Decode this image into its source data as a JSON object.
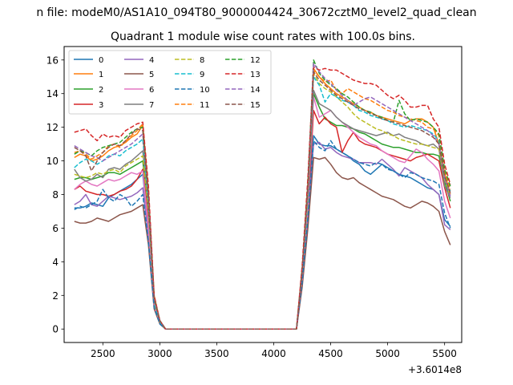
{
  "chart_data": {
    "type": "line",
    "suptitle": "n file: modeM0/AS1A10_094T80_9000004424_30672cztM0_level2_quad_clean",
    "title": "Quadrant 1 module wise count rates with 100.0s bins.",
    "xlabel": "",
    "ylabel": "",
    "offset_text": "+3.6014e8",
    "xlim": [
      2160,
      5650
    ],
    "ylim": [
      -0.8,
      16.8
    ],
    "xticks": [
      2500,
      3000,
      3500,
      4000,
      4500,
      5000,
      5500
    ],
    "xtick_labels": [
      "2500",
      "3000",
      "3500",
      "4000",
      "4500",
      "5000",
      "5500"
    ],
    "yticks": [
      0,
      2,
      4,
      6,
      8,
      10,
      12,
      14,
      16
    ],
    "ytick_labels": [
      "0",
      "2",
      "4",
      "6",
      "8",
      "10",
      "12",
      "14",
      "16"
    ],
    "grid": false,
    "legend": "upper-left, 4 columns",
    "x": [
      2250,
      2300,
      2350,
      2400,
      2450,
      2500,
      2550,
      2600,
      2650,
      2700,
      2750,
      2800,
      2850,
      2900,
      2950,
      3000,
      3050,
      3100,
      4150,
      4200,
      4250,
      4300,
      4350,
      4400,
      4450,
      4500,
      4550,
      4600,
      4650,
      4700,
      4750,
      4800,
      4850,
      4900,
      4950,
      5000,
      5050,
      5100,
      5150,
      5200,
      5250,
      5300,
      5350,
      5400,
      5450,
      5500,
      5550
    ],
    "series": [
      {
        "name": "0",
        "color": "#1f77b4",
        "dash": "solid",
        "values": [
          7.2,
          7.2,
          7.3,
          7.5,
          7.4,
          7.3,
          7.8,
          8.0,
          8.2,
          8.4,
          8.6,
          8.9,
          9.2,
          6.0,
          1.5,
          0.4,
          0,
          0,
          0,
          0,
          3.0,
          7.0,
          11.5,
          11.0,
          10.9,
          10.9,
          10.7,
          10.5,
          10.3,
          10.0,
          9.8,
          9.4,
          9.2,
          9.5,
          9.8,
          9.6,
          9.4,
          9.2,
          9.1,
          9.0,
          8.8,
          8.6,
          8.4,
          8.3,
          8.0,
          6.5,
          6.1
        ]
      },
      {
        "name": "1",
        "color": "#ff7f0e",
        "dash": "solid",
        "values": [
          10.2,
          10.4,
          10.3,
          10.0,
          10.1,
          10.3,
          10.6,
          10.8,
          10.9,
          11.1,
          11.4,
          11.6,
          12.1,
          8.0,
          2.0,
          0.5,
          0,
          0,
          0,
          0,
          3.5,
          8.5,
          15.5,
          15.0,
          14.6,
          14.3,
          14.0,
          13.8,
          13.6,
          13.4,
          13.2,
          13.0,
          12.9,
          12.7,
          12.6,
          12.5,
          12.4,
          12.3,
          12.2,
          12.4,
          12.5,
          12.5,
          12.3,
          12.0,
          11.0,
          9.3,
          8.0
        ]
      },
      {
        "name": "2",
        "color": "#2ca02c",
        "dash": "solid",
        "values": [
          8.9,
          9.0,
          9.0,
          8.9,
          9.0,
          9.1,
          9.3,
          9.3,
          9.2,
          9.4,
          9.6,
          9.8,
          10.0,
          7.0,
          1.6,
          0.4,
          0,
          0,
          0,
          0,
          3.2,
          7.8,
          14.0,
          13.2,
          12.5,
          12.3,
          12.1,
          12.1,
          12.0,
          11.9,
          11.7,
          11.6,
          11.4,
          11.2,
          11.0,
          10.9,
          10.8,
          10.8,
          10.7,
          10.6,
          10.5,
          10.5,
          10.4,
          10.4,
          10.3,
          8.8,
          7.6
        ]
      },
      {
        "name": "3",
        "color": "#d62728",
        "dash": "solid",
        "values": [
          8.3,
          8.5,
          8.2,
          8.1,
          8.0,
          8.0,
          7.9,
          8.0,
          8.2,
          8.3,
          8.5,
          8.9,
          9.5,
          6.5,
          1.5,
          0.4,
          0,
          0,
          0,
          0,
          3.0,
          7.2,
          13.0,
          12.2,
          12.6,
          12.2,
          12.0,
          10.5,
          11.2,
          11.7,
          11.2,
          11.0,
          10.9,
          10.8,
          10.6,
          10.4,
          10.3,
          10.2,
          10.1,
          10.0,
          10.2,
          10.3,
          10.4,
          10.2,
          10.0,
          8.4,
          7.2
        ]
      },
      {
        "name": "4",
        "color": "#9467bd",
        "dash": "solid",
        "values": [
          7.4,
          7.6,
          8.0,
          7.4,
          7.3,
          7.6,
          7.9,
          7.8,
          7.7,
          7.8,
          7.9,
          8.1,
          8.4,
          5.5,
          1.4,
          0.4,
          0,
          0,
          0,
          0,
          2.8,
          6.8,
          11.0,
          11.1,
          10.7,
          10.8,
          10.5,
          10.3,
          10.2,
          10.1,
          9.9,
          9.9,
          9.9,
          9.8,
          10.1,
          9.8,
          9.5,
          9.1,
          9.6,
          9.4,
          9.2,
          9.0,
          8.6,
          8.3,
          8.0,
          6.2,
          5.9
        ]
      },
      {
        "name": "5",
        "color": "#8c564b",
        "dash": "solid",
        "values": [
          6.4,
          6.3,
          6.3,
          6.4,
          6.6,
          6.5,
          6.4,
          6.6,
          6.8,
          6.9,
          7.0,
          7.2,
          7.4,
          5.0,
          1.2,
          0.3,
          0,
          0,
          0,
          0,
          2.5,
          6.0,
          10.2,
          10.1,
          10.2,
          9.8,
          9.3,
          9.0,
          8.9,
          9.0,
          8.7,
          8.5,
          8.3,
          8.1,
          7.9,
          7.8,
          7.7,
          7.5,
          7.3,
          7.2,
          7.4,
          7.6,
          7.5,
          7.3,
          7.0,
          5.8,
          5.0
        ]
      },
      {
        "name": "6",
        "color": "#e377c2",
        "dash": "solid",
        "values": [
          8.3,
          8.6,
          8.8,
          8.6,
          8.5,
          8.7,
          8.9,
          8.8,
          8.9,
          9.1,
          9.3,
          9.2,
          9.4,
          6.0,
          1.4,
          0.4,
          0,
          0,
          0,
          0,
          3.0,
          7.5,
          13.8,
          12.6,
          12.8,
          13.0,
          12.6,
          12.3,
          12.0,
          11.7,
          11.4,
          11.2,
          11.0,
          10.9,
          10.6,
          10.4,
          10.2,
          10.0,
          9.9,
          10.3,
          10.7,
          10.5,
          10.1,
          9.8,
          9.4,
          7.6,
          6.6
        ]
      },
      {
        "name": "7",
        "color": "#7f7f7f",
        "dash": "solid",
        "values": [
          9.5,
          9.0,
          8.8,
          8.9,
          9.2,
          9.0,
          9.5,
          9.6,
          9.5,
          9.8,
          10.0,
          10.3,
          10.6,
          7.2,
          1.7,
          0.4,
          0,
          0,
          0,
          0,
          3.3,
          8.0,
          14.2,
          13.4,
          13.2,
          13.0,
          12.6,
          12.3,
          12.1,
          11.9,
          11.8,
          11.7,
          11.6,
          11.5,
          11.6,
          11.7,
          11.5,
          11.6,
          11.4,
          11.3,
          11.2,
          11.0,
          10.9,
          11.0,
          10.7,
          8.5,
          7.8
        ]
      },
      {
        "name": "8",
        "color": "#bcbd22",
        "dash": "dashed",
        "values": [
          9.2,
          9.1,
          9.0,
          9.1,
          9.3,
          9.2,
          9.4,
          9.5,
          9.3,
          9.7,
          9.9,
          10.1,
          10.3,
          7.0,
          1.6,
          0.4,
          0,
          0,
          0,
          0,
          3.2,
          7.8,
          15.2,
          14.6,
          14.3,
          14.1,
          13.8,
          13.5,
          13.2,
          12.8,
          12.5,
          12.3,
          12.1,
          11.9,
          11.8,
          11.6,
          11.5,
          11.3,
          11.2,
          11.1,
          11.0,
          11.0,
          10.9,
          10.8,
          10.7,
          8.9,
          7.9
        ]
      },
      {
        "name": "9",
        "color": "#17becf",
        "dash": "dashed",
        "values": [
          9.6,
          9.9,
          10.1,
          10.0,
          9.8,
          10.0,
          10.3,
          10.4,
          10.3,
          10.6,
          10.8,
          11.0,
          11.3,
          7.5,
          1.7,
          0.4,
          0,
          0,
          0,
          0,
          3.4,
          8.2,
          15.0,
          14.5,
          13.5,
          14.0,
          13.8,
          13.6,
          13.5,
          13.3,
          13.0,
          12.9,
          12.7,
          12.6,
          12.5,
          12.4,
          12.2,
          12.1,
          12.0,
          12.1,
          12.0,
          11.9,
          11.8,
          11.6,
          11.2,
          9.0,
          8.2
        ]
      },
      {
        "name": "10",
        "color": "#1f77b4",
        "dash": "dashed",
        "values": [
          7.1,
          7.3,
          7.2,
          7.4,
          7.6,
          8.3,
          7.8,
          7.6,
          8.0,
          7.8,
          7.3,
          7.6,
          8.0,
          5.2,
          1.3,
          0.3,
          0,
          0,
          0,
          0,
          2.8,
          6.6,
          11.2,
          10.8,
          10.6,
          11.2,
          10.7,
          10.5,
          10.3,
          10.1,
          9.9,
          9.8,
          9.7,
          9.9,
          9.8,
          9.5,
          9.4,
          9.2,
          9.0,
          9.3,
          9.2,
          9.0,
          8.9,
          8.8,
          8.6,
          6.9,
          6.0
        ]
      },
      {
        "name": "11",
        "color": "#ff7f0e",
        "dash": "dashed",
        "values": [
          10.5,
          10.6,
          10.4,
          10.1,
          10.3,
          10.5,
          10.9,
          11.0,
          10.8,
          11.2,
          11.5,
          11.8,
          12.2,
          8.2,
          1.9,
          0.5,
          0,
          0,
          0,
          0,
          3.6,
          8.6,
          15.4,
          15.0,
          14.7,
          14.8,
          14.2,
          14.0,
          14.3,
          14.1,
          13.9,
          13.7,
          13.6,
          13.4,
          13.2,
          13.0,
          12.9,
          12.7,
          12.6,
          12.5,
          12.4,
          12.3,
          12.0,
          11.9,
          11.5,
          9.4,
          8.3
        ]
      },
      {
        "name": "12",
        "color": "#2ca02c",
        "dash": "dashed",
        "values": [
          10.4,
          10.6,
          10.5,
          10.3,
          10.6,
          10.8,
          10.9,
          11.0,
          11.1,
          11.4,
          11.7,
          11.9,
          12.0,
          8.0,
          1.9,
          0.5,
          0,
          0,
          0,
          0,
          3.6,
          8.6,
          16.0,
          15.2,
          14.8,
          14.5,
          14.3,
          14.0,
          13.8,
          13.5,
          13.2,
          13.0,
          12.9,
          12.7,
          12.6,
          12.4,
          12.3,
          13.6,
          12.8,
          12.4,
          12.5,
          12.4,
          12.3,
          12.0,
          11.6,
          9.5,
          8.5
        ]
      },
      {
        "name": "13",
        "color": "#d62728",
        "dash": "dashed",
        "values": [
          11.7,
          11.8,
          11.9,
          11.5,
          11.2,
          11.6,
          11.4,
          11.5,
          11.4,
          11.8,
          12.0,
          12.2,
          12.3,
          8.5,
          2.0,
          0.5,
          0,
          0,
          0,
          0,
          3.8,
          9.0,
          15.6,
          15.4,
          15.5,
          15.4,
          15.4,
          15.2,
          15.0,
          14.8,
          14.7,
          14.6,
          14.6,
          14.5,
          14.2,
          13.9,
          13.7,
          13.9,
          13.6,
          13.2,
          13.2,
          13.3,
          13.3,
          12.5,
          12.0,
          9.8,
          8.6
        ]
      },
      {
        "name": "14",
        "color": "#9467bd",
        "dash": "dashed",
        "values": [
          10.9,
          10.7,
          10.5,
          10.3,
          10.2,
          10.0,
          10.2,
          10.4,
          10.6,
          10.8,
          11.0,
          11.3,
          11.6,
          7.8,
          1.8,
          0.5,
          0,
          0,
          0,
          0,
          3.4,
          8.2,
          15.8,
          15.3,
          14.9,
          14.6,
          14.2,
          13.9,
          13.6,
          13.3,
          13.5,
          13.7,
          13.8,
          13.6,
          13.4,
          13.2,
          13.0,
          12.8,
          12.6,
          12.4,
          12.2,
          12.0,
          11.8,
          11.5,
          11.0,
          9.0,
          7.9
        ]
      },
      {
        "name": "15",
        "color": "#8c564b",
        "dash": "dashed",
        "values": [
          10.8,
          10.6,
          10.3,
          9.4,
          10.0,
          10.5,
          10.8,
          11.0,
          10.9,
          11.2,
          11.6,
          11.9,
          11.8,
          7.6,
          1.8,
          0.5,
          0,
          0,
          0,
          0,
          3.5,
          8.4,
          15.3,
          14.8,
          14.5,
          14.2,
          13.9,
          13.7,
          13.5,
          13.3,
          13.1,
          13.0,
          12.8,
          12.7,
          12.5,
          12.4,
          12.3,
          12.2,
          12.1,
          12.0,
          11.9,
          11.8,
          11.6,
          11.4,
          11.0,
          9.1,
          8.1
        ]
      }
    ]
  }
}
